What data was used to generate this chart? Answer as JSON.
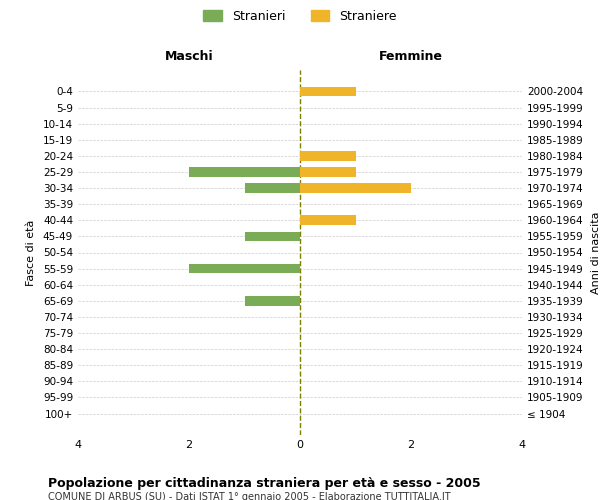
{
  "age_groups": [
    "100+",
    "95-99",
    "90-94",
    "85-89",
    "80-84",
    "75-79",
    "70-74",
    "65-69",
    "60-64",
    "55-59",
    "50-54",
    "45-49",
    "40-44",
    "35-39",
    "30-34",
    "25-29",
    "20-24",
    "15-19",
    "10-14",
    "5-9",
    "0-4"
  ],
  "birth_years": [
    "≤ 1904",
    "1905-1909",
    "1910-1914",
    "1915-1919",
    "1920-1924",
    "1925-1929",
    "1930-1934",
    "1935-1939",
    "1940-1944",
    "1945-1949",
    "1950-1954",
    "1955-1959",
    "1960-1964",
    "1965-1969",
    "1970-1974",
    "1975-1979",
    "1980-1984",
    "1985-1989",
    "1990-1994",
    "1995-1999",
    "2000-2004"
  ],
  "maschi": [
    0,
    0,
    0,
    0,
    0,
    0,
    0,
    1,
    0,
    2,
    0,
    1,
    0,
    0,
    1,
    2,
    0,
    0,
    0,
    0,
    0
  ],
  "femmine": [
    0,
    0,
    0,
    0,
    0,
    0,
    0,
    0,
    0,
    0,
    0,
    0,
    1,
    0,
    2,
    1,
    1,
    0,
    0,
    0,
    1
  ],
  "maschi_color": "#7aab57",
  "femmine_color": "#f0b429",
  "title": "Popolazione per cittadinanza straniera per età e sesso - 2005",
  "subtitle": "COMUNE DI ARBUS (SU) - Dati ISTAT 1° gennaio 2005 - Elaborazione TUTTITALIA.IT",
  "xlabel_left": "Maschi",
  "xlabel_right": "Femmine",
  "ylabel_left": "Fasce di età",
  "ylabel_right": "Anni di nascita",
  "legend_maschi": "Stranieri",
  "legend_femmine": "Straniere",
  "xlim": 4,
  "bg_color": "#ffffff",
  "grid_color": "#cccccc",
  "bar_height": 0.6
}
